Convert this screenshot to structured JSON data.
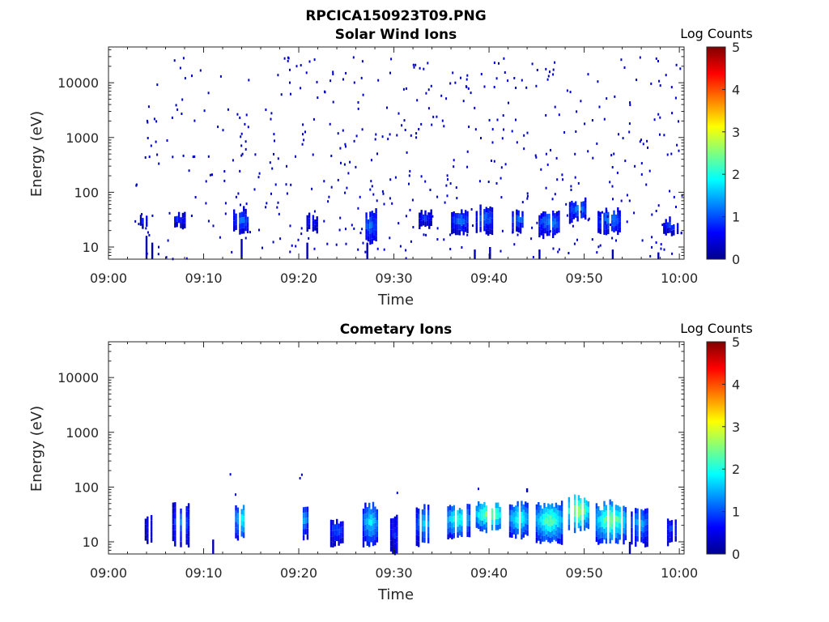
{
  "figure_title": "RPCICA150923T09.PNG",
  "chart_data": [
    {
      "type": "heatmap",
      "title": "Solar Wind Ions",
      "xlabel": "Time",
      "ylabel": "Energy (eV)",
      "x_ticks": [
        "09:00",
        "09:10",
        "09:20",
        "09:30",
        "09:40",
        "09:50",
        "10:00"
      ],
      "y_ticks": [
        {
          "value": 10,
          "label": "10"
        },
        {
          "value": 100,
          "label": "100"
        },
        {
          "value": 1000,
          "label": "1000"
        },
        {
          "value": 10000,
          "label": "10000"
        }
      ],
      "x_range_minutes": [
        0,
        60.5
      ],
      "y_range": [
        6,
        45000
      ],
      "y_scale": "log",
      "colormap": "jet",
      "colorbar": {
        "label": "Log Counts",
        "min": 0,
        "max": 5,
        "ticks": [
          "0",
          "1",
          "2",
          "3",
          "4",
          "5"
        ]
      },
      "bands": [
        {
          "t0": 3.3,
          "t1": 4.0,
          "e0": 22,
          "e1": 32,
          "c": 0.5
        },
        {
          "t0": 6.7,
          "t1": 8.0,
          "e0": 24,
          "e1": 34,
          "c": 0.6
        },
        {
          "t0": 13.1,
          "t1": 14.6,
          "e0": 18,
          "e1": 40,
          "c": 0.8
        },
        {
          "t0": 20.6,
          "t1": 22.0,
          "e0": 20,
          "e1": 34,
          "c": 0.5
        },
        {
          "t0": 26.8,
          "t1": 28.1,
          "e0": 12,
          "e1": 36,
          "c": 0.8
        },
        {
          "t0": 32.6,
          "t1": 33.9,
          "e0": 24,
          "e1": 36,
          "c": 0.6
        },
        {
          "t0": 36.0,
          "t1": 37.8,
          "e0": 18,
          "e1": 38,
          "c": 0.8
        },
        {
          "t0": 38.6,
          "t1": 40.3,
          "e0": 18,
          "e1": 44,
          "c": 0.8
        },
        {
          "t0": 42.2,
          "t1": 43.8,
          "e0": 20,
          "e1": 38,
          "c": 0.8
        },
        {
          "t0": 45.2,
          "t1": 47.5,
          "e0": 16,
          "e1": 36,
          "c": 0.9
        },
        {
          "t0": 48.4,
          "t1": 50.2,
          "e0": 30,
          "e1": 60,
          "c": 0.9
        },
        {
          "t0": 51.4,
          "t1": 53.8,
          "e0": 18,
          "e1": 40,
          "c": 0.9
        },
        {
          "t0": 58.3,
          "t1": 59.8,
          "e0": 18,
          "e1": 26,
          "c": 0.7
        }
      ],
      "streaks": [
        {
          "t": 4.0,
          "e0": 6,
          "e1": 16
        },
        {
          "t": 4.6,
          "e0": 6,
          "e1": 12
        },
        {
          "t": 14.0,
          "e0": 6,
          "e1": 14
        },
        {
          "t": 20.9,
          "e0": 6,
          "e1": 12
        },
        {
          "t": 27.2,
          "e0": 6,
          "e1": 12
        },
        {
          "t": 38.5,
          "e0": 6,
          "e1": 9
        },
        {
          "t": 40.1,
          "e0": 6,
          "e1": 10
        },
        {
          "t": 45.3,
          "e0": 6,
          "e1": 9
        },
        {
          "t": 53.0,
          "e0": 6,
          "e1": 9
        },
        {
          "t": 57.8,
          "e0": 6,
          "e1": 8
        }
      ],
      "scatter": {
        "t0": 2.8,
        "t1": 60.3,
        "e0": 6,
        "e1": 30000,
        "count": 520,
        "seed": 11,
        "c": 0.35
      }
    },
    {
      "type": "heatmap",
      "title": "Cometary Ions",
      "xlabel": "Time",
      "ylabel": "Energy (eV)",
      "x_ticks": [
        "09:00",
        "09:10",
        "09:20",
        "09:30",
        "09:40",
        "09:50",
        "10:00"
      ],
      "y_ticks": [
        {
          "value": 10,
          "label": "10"
        },
        {
          "value": 100,
          "label": "100"
        },
        {
          "value": 1000,
          "label": "1000"
        },
        {
          "value": 10000,
          "label": "10000"
        }
      ],
      "x_range_minutes": [
        0,
        60.5
      ],
      "y_range": [
        6,
        45000
      ],
      "y_scale": "log",
      "colormap": "jet",
      "colorbar": {
        "label": "Log Counts",
        "min": 0,
        "max": 5,
        "ticks": [
          "0",
          "1",
          "2",
          "3",
          "4",
          "5"
        ]
      },
      "bands": [
        {
          "t0": 3.8,
          "t1": 4.6,
          "e0": 10,
          "e1": 26,
          "c": 0.5
        },
        {
          "t0": 6.7,
          "t1": 8.4,
          "e0": 9,
          "e1": 40,
          "c": 0.8
        },
        {
          "t0": 13.3,
          "t1": 14.7,
          "e0": 11,
          "e1": 42,
          "c": 1.3
        },
        {
          "t0": 19.8,
          "t1": 20.9,
          "e0": 12,
          "e1": 38,
          "c": 1.0
        },
        {
          "t0": 23.3,
          "t1": 24.6,
          "e0": 9,
          "e1": 22,
          "c": 0.7
        },
        {
          "t0": 26.7,
          "t1": 28.2,
          "e0": 9,
          "e1": 40,
          "c": 1.2
        },
        {
          "t0": 29.6,
          "t1": 30.4,
          "e0": 6,
          "e1": 24,
          "c": 0.6
        },
        {
          "t0": 32.3,
          "t1": 33.9,
          "e0": 9,
          "e1": 36,
          "c": 1.1
        },
        {
          "t0": 35.4,
          "t1": 37.9,
          "e0": 12,
          "e1": 40,
          "c": 1.4
        },
        {
          "t0": 38.6,
          "t1": 41.4,
          "e0": 16,
          "e1": 45,
          "c": 1.8
        },
        {
          "t0": 42.1,
          "t1": 44.1,
          "e0": 12,
          "e1": 42,
          "c": 1.4
        },
        {
          "t0": 44.9,
          "t1": 47.6,
          "e0": 10,
          "e1": 42,
          "c": 1.6
        },
        {
          "t0": 48.1,
          "t1": 50.4,
          "e0": 16,
          "e1": 60,
          "c": 1.9
        },
        {
          "t0": 51.2,
          "t1": 54.3,
          "e0": 10,
          "e1": 42,
          "c": 1.7
        },
        {
          "t0": 54.9,
          "t1": 56.6,
          "e0": 9,
          "e1": 36,
          "c": 1.0
        },
        {
          "t0": 58.5,
          "t1": 59.7,
          "e0": 9,
          "e1": 24,
          "c": 0.6
        }
      ],
      "streaks": [
        {
          "t": 11.0,
          "e0": 6,
          "e1": 11
        },
        {
          "t": 29.9,
          "e0": 6,
          "e1": 12
        },
        {
          "t": 54.8,
          "e0": 6,
          "e1": 10
        },
        {
          "t": 44.0,
          "e0": 80,
          "e1": 95
        }
      ],
      "scatter": {
        "t0": 10.8,
        "t1": 50.0,
        "e0": 60,
        "e1": 200,
        "count": 6,
        "seed": 5,
        "c": 0.4
      }
    }
  ]
}
